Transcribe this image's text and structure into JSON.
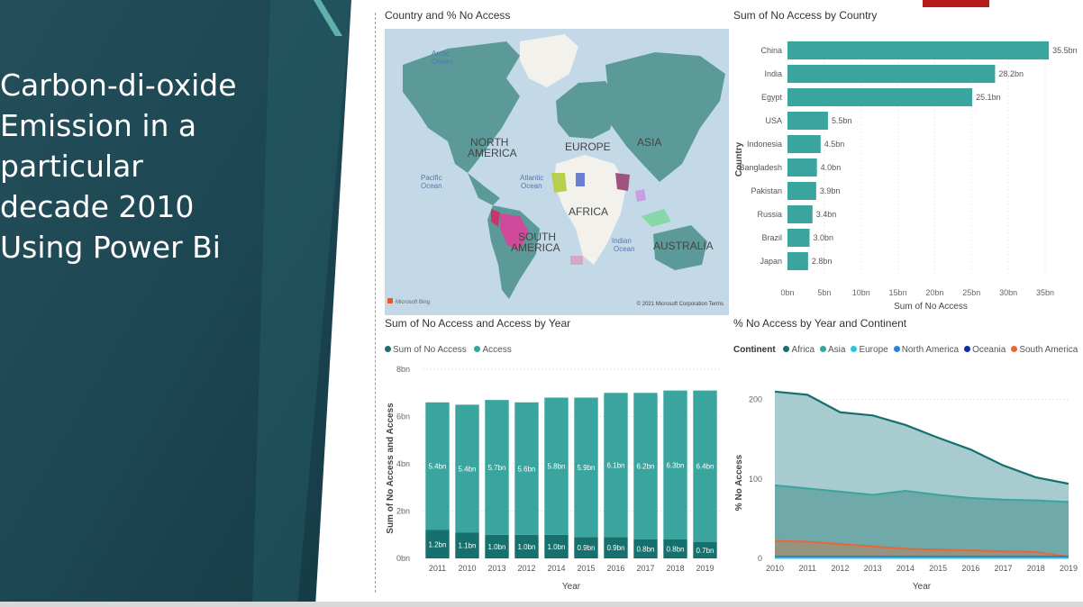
{
  "slide": {
    "title": "Carbon-di-oxide\nEmission in a\nparticular\ndecade 2010\nUsing Power Bi"
  },
  "colors": {
    "teal": "#3aa59e",
    "dark_teal": "#16706e",
    "asia": "#3aa59e",
    "europe": "#2ec4d8",
    "north_america": "#2f7fd8",
    "oceania": "#0d2fa0",
    "south_america": "#e2693a",
    "ocean": "#c4d9e8",
    "land": "#f3f1ec",
    "slide_bg": "#1d4b55"
  },
  "map": {
    "title": "Country and % No Access",
    "labels": {
      "arctic": "Arctic\nOcean",
      "north_america": "NORTH\nAMERICA",
      "europe": "EUROPE",
      "asia": "ASIA",
      "pacific": "Pacific\nOcean",
      "atlantic": "Atlantic\nOcean",
      "africa": "AFRICA",
      "south_america": "SOUTH\nAMERICA",
      "indian": "Indian\nOcean",
      "australia": "AUSTRALIA"
    },
    "attribution_left": "Microsoft Bing",
    "attribution_right": "© 2021 Microsoft Corporation  Terms"
  },
  "chart_data": [
    {
      "type": "bar",
      "orientation": "horizontal",
      "title": "Sum of No Access by Country",
      "xlabel": "Sum of No Access",
      "ylabel": "Country",
      "categories": [
        "China",
        "India",
        "Egypt",
        "USA",
        "Indonesia",
        "Bangladesh",
        "Pakistan",
        "Russia",
        "Brazil",
        "Japan"
      ],
      "values": [
        35.5,
        28.2,
        25.1,
        5.5,
        4.5,
        4.0,
        3.9,
        3.4,
        3.0,
        2.8
      ],
      "data_labels": [
        "35.5bn",
        "28.2bn",
        "25.1bn",
        "5.5bn",
        "4.5bn",
        "4.0bn",
        "3.9bn",
        "3.4bn",
        "3.0bn",
        "2.8bn"
      ],
      "xlim": [
        0,
        35
      ],
      "xticks": [
        "0bn",
        "5bn",
        "10bn",
        "15bn",
        "20bn",
        "25bn",
        "30bn",
        "35bn"
      ]
    },
    {
      "type": "bar",
      "stacked": true,
      "title": "Sum of No Access and Access by Year",
      "xlabel": "Year",
      "ylabel": "Sum of No Access and Access",
      "categories": [
        "2011",
        "2010",
        "2013",
        "2012",
        "2014",
        "2015",
        "2016",
        "2017",
        "2018",
        "2019"
      ],
      "series": [
        {
          "name": "Sum of No Access",
          "values": [
            1.2,
            1.1,
            1.0,
            1.0,
            1.0,
            0.9,
            0.9,
            0.8,
            0.8,
            0.7
          ],
          "labels": [
            "1.2bn",
            "1.1bn",
            "1.0bn",
            "1.0bn",
            "1.0bn",
            "0.9bn",
            "0.9bn",
            "0.8bn",
            "0.8bn",
            "0.7bn"
          ]
        },
        {
          "name": "Access",
          "values": [
            5.4,
            5.4,
            5.7,
            5.6,
            5.8,
            5.9,
            6.1,
            6.2,
            6.3,
            6.4
          ],
          "labels": [
            "5.4bn",
            "5.4bn",
            "5.7bn",
            "5.6bn",
            "5.8bn",
            "5.9bn",
            "6.1bn",
            "6.2bn",
            "6.3bn",
            "6.4bn"
          ]
        }
      ],
      "ylim": [
        0,
        8
      ],
      "yticks": [
        "0bn",
        "2bn",
        "4bn",
        "6bn",
        "8bn"
      ],
      "legend_position": "top-left"
    },
    {
      "type": "area",
      "title": "% No Access by Year and Continent",
      "xlabel": "Year",
      "ylabel": "% No Access",
      "legend_title": "Continent",
      "x": [
        "2010",
        "2011",
        "2012",
        "2013",
        "2014",
        "2015",
        "2016",
        "2017",
        "2018",
        "2019"
      ],
      "series": [
        {
          "name": "Africa",
          "values": [
            210,
            206,
            184,
            180,
            168,
            152,
            137,
            117,
            102,
            94
          ]
        },
        {
          "name": "Asia",
          "values": [
            92,
            88,
            84,
            80,
            85,
            80,
            76,
            74,
            73,
            71
          ]
        },
        {
          "name": "Europe",
          "values": [
            0.5,
            0.5,
            0.5,
            0.5,
            0.5,
            0.5,
            0.5,
            0.5,
            0.5,
            0.5
          ]
        },
        {
          "name": "North America",
          "values": [
            1,
            1,
            1,
            1,
            1,
            1,
            1,
            1,
            1,
            1
          ]
        },
        {
          "name": "Oceania",
          "values": [
            1.5,
            1.5,
            1.5,
            1.5,
            1.5,
            1.5,
            1.5,
            1.5,
            1.5,
            1.5
          ]
        },
        {
          "name": "South America",
          "values": [
            22,
            21,
            18,
            15,
            12,
            11,
            10,
            9,
            8,
            2
          ]
        }
      ],
      "ylim": [
        0,
        220
      ],
      "yticks": [
        "0",
        "100",
        "200"
      ],
      "legend_position": "top-left"
    }
  ]
}
